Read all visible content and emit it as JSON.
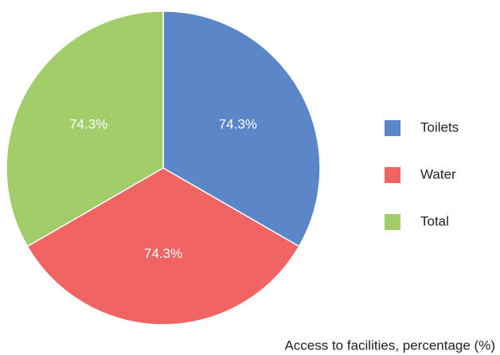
{
  "chart_data": {
    "type": "pie",
    "caption": "Access to facilities, percentage (%)",
    "categories": [
      "Toilets",
      "Water",
      "Total"
    ],
    "values": [
      74.3,
      74.3,
      74.3
    ],
    "value_labels": [
      "74.3%",
      "74.3%",
      "74.3%"
    ],
    "colors": [
      "#5b87c8",
      "#f06464",
      "#a3cd6b"
    ],
    "legend": "right"
  }
}
